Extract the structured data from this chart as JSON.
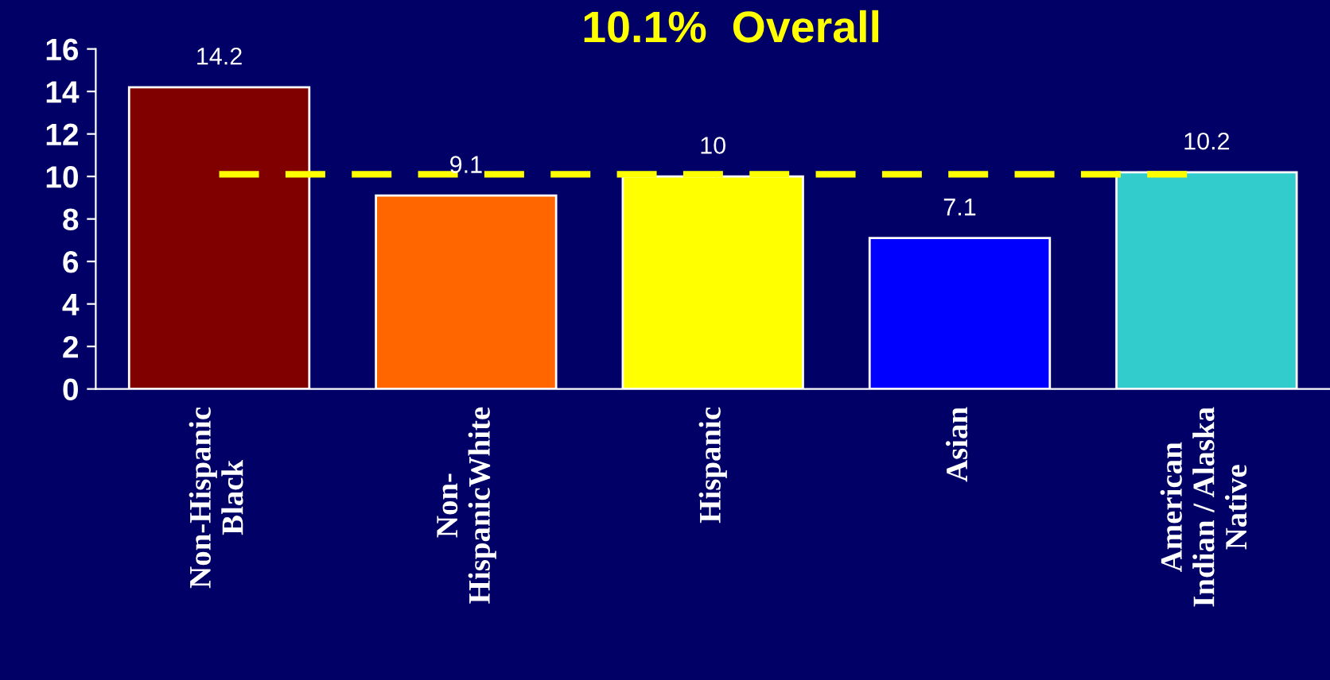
{
  "chart_data": {
    "type": "bar",
    "title": "10.1%  Overall",
    "categories": [
      "Non-Hispanic\nBlack",
      "Non-\nHispanicWhite",
      "Hispanic",
      "Asian",
      "American\nIndian / Alaska\nNative"
    ],
    "values": [
      14.2,
      9.1,
      10,
      7.1,
      10.2
    ],
    "colors": [
      "#800000",
      "#ff6600",
      "#ffff00",
      "#0000ff",
      "#33cccc"
    ],
    "ylim": [
      0,
      16
    ],
    "yticks": [
      0,
      2,
      4,
      6,
      8,
      10,
      12,
      14,
      16
    ],
    "data_labels": true,
    "ref_lines": [
      {
        "axis": "y",
        "value": 10.1,
        "color": "#ffff00",
        "line_style": "dashed"
      }
    ]
  }
}
